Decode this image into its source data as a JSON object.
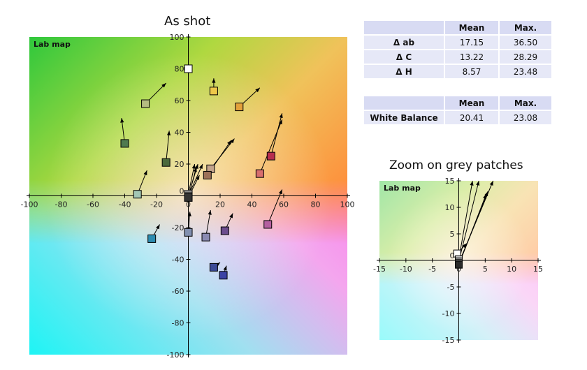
{
  "titles": {
    "main": "As shot",
    "zoom": "Zoom on grey patches"
  },
  "stats_table": {
    "headers": [
      "",
      "Mean",
      "Max."
    ],
    "rows": [
      {
        "label": "Δ ab",
        "mean": "17.15",
        "max": "36.50"
      },
      {
        "label": "Δ C",
        "mean": "13.22",
        "max": "28.29"
      },
      {
        "label": "Δ H",
        "mean": "8.57",
        "max": "23.48"
      }
    ]
  },
  "wb_table": {
    "headers": [
      "",
      "Mean",
      "Max."
    ],
    "rows": [
      {
        "label": "White Balance",
        "mean": "20.41",
        "max": "23.08"
      }
    ]
  },
  "chart_data": [
    {
      "type": "scatter",
      "title": "As shot",
      "plot_label": "Lab map",
      "xlim": [
        -100,
        100
      ],
      "ylim": [
        -100,
        100
      ],
      "x_ticks": [
        -100,
        -80,
        -60,
        -40,
        -20,
        0,
        20,
        40,
        60,
        80,
        100
      ],
      "y_ticks": [
        -100,
        -80,
        -60,
        -40,
        -20,
        0,
        20,
        40,
        60,
        80,
        100
      ],
      "grid": false,
      "background": "Lab color map",
      "points": [
        {
          "x": 0,
          "y": 80,
          "dx": 0,
          "dy": 80,
          "color": "#ffffff"
        },
        {
          "x": 16,
          "y": 66,
          "dx": 16,
          "dy": 74,
          "color": "#eec84a"
        },
        {
          "x": -27,
          "y": 58,
          "dx": -14,
          "dy": 71,
          "color": "#b4bc82"
        },
        {
          "x": 32,
          "y": 56,
          "dx": 45,
          "dy": 68,
          "color": "#e3a13b"
        },
        {
          "x": -40,
          "y": 33,
          "dx": -42,
          "dy": 49,
          "color": "#4f7a4f"
        },
        {
          "x": -14,
          "y": 21,
          "dx": -12,
          "dy": 41,
          "color": "#4a6a3c"
        },
        {
          "x": 52,
          "y": 25,
          "dx": 59,
          "dy": 52,
          "color": "#b72d4e"
        },
        {
          "x": 45,
          "y": 14,
          "dx": 59,
          "dy": 48,
          "color": "#d86e6e"
        },
        {
          "x": 14,
          "y": 17,
          "dx": 29,
          "dy": 36,
          "color": "#c4a48c"
        },
        {
          "x": 12,
          "y": 13,
          "dx": 27,
          "dy": 35,
          "color": "#9c7058"
        },
        {
          "x": 0,
          "y": 1,
          "dx": 4,
          "dy": 20,
          "color": "#ffffff"
        },
        {
          "x": 0,
          "y": 0,
          "dx": 6,
          "dy": 20,
          "color": "#c8c8c8"
        },
        {
          "x": 0,
          "y": 0,
          "dx": 9,
          "dy": 20,
          "color": "#8c8c8c"
        },
        {
          "x": 0,
          "y": -1,
          "dx": 7,
          "dy": 13,
          "color": "#555555"
        },
        {
          "x": 0,
          "y": -1,
          "dx": 5,
          "dy": 18,
          "color": "#333333"
        },
        {
          "x": -32,
          "y": 1,
          "dx": -26,
          "dy": 16,
          "color": "#a3c7b5"
        },
        {
          "x": -23,
          "y": -27,
          "dx": -18,
          "dy": -18,
          "color": "#2c8bb0"
        },
        {
          "x": 0,
          "y": -23,
          "dx": 1,
          "dy": -10,
          "color": "#8290b0"
        },
        {
          "x": 11,
          "y": -26,
          "dx": 14,
          "dy": -9,
          "color": "#8a8ab2"
        },
        {
          "x": 23,
          "y": -22,
          "dx": 28,
          "dy": -11,
          "color": "#6c4d8e"
        },
        {
          "x": 50,
          "y": -18,
          "dx": 59,
          "dy": 4,
          "color": "#b460a0"
        },
        {
          "x": 16,
          "y": -45,
          "dx": 20,
          "dy": -42,
          "color": "#3c4a96"
        },
        {
          "x": 22,
          "y": -50,
          "dx": 24,
          "dy": -44,
          "color": "#3c43a5"
        }
      ]
    },
    {
      "type": "scatter",
      "title": "Zoom on grey patches",
      "plot_label": "Lab map",
      "xlim": [
        -15,
        15
      ],
      "ylim": [
        -15,
        15
      ],
      "x_ticks": [
        -15,
        -10,
        -5,
        0,
        5,
        10,
        15
      ],
      "y_ticks": [
        -15,
        -10,
        -5,
        0,
        5,
        10,
        15
      ],
      "grid": false,
      "background": "Lab color map",
      "points": [
        {
          "x": -0.3,
          "y": 1.3,
          "dx": 1.5,
          "dy": 3.2,
          "color": "#ffffff"
        },
        {
          "x": 0,
          "y": 0.2,
          "dx": 2.6,
          "dy": 15,
          "color": "#c8c8c8"
        },
        {
          "x": 0,
          "y": -0.2,
          "dx": 3.8,
          "dy": 15,
          "color": "#9a9a9a"
        },
        {
          "x": 0,
          "y": -0.5,
          "dx": 6.5,
          "dy": 15,
          "color": "#6a6a6a"
        },
        {
          "x": 0,
          "y": -0.8,
          "dx": 5.5,
          "dy": 13,
          "color": "#444444"
        },
        {
          "x": 0,
          "y": -0.8,
          "dx": 5.2,
          "dy": 12.5,
          "color": "#2a2a2a"
        }
      ]
    }
  ]
}
